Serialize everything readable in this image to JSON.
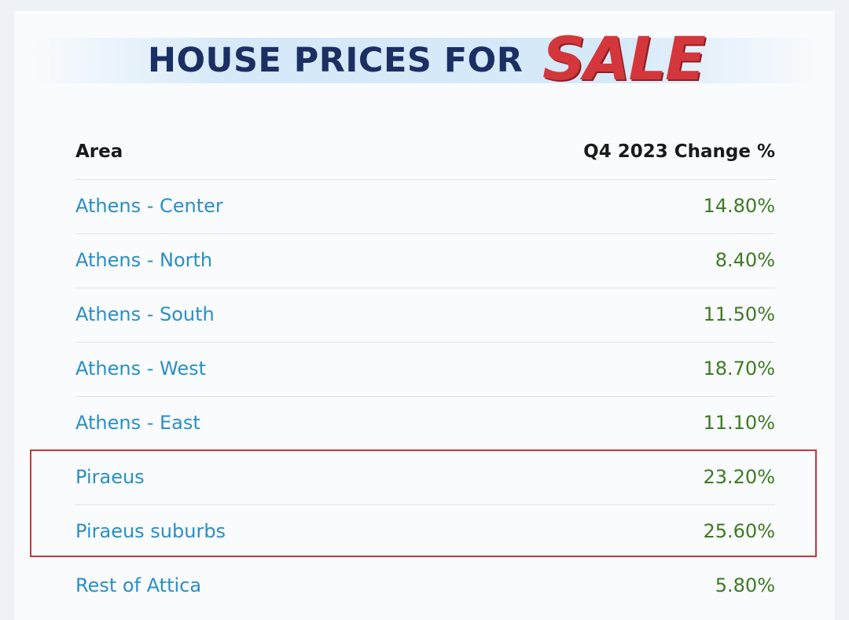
{
  "header": {
    "title": "HOUSE PRICES FOR",
    "highlight": "SALE"
  },
  "table": {
    "columns": [
      "Area",
      "Q4 2023  Change %"
    ],
    "rows": [
      [
        "Athens - Center",
        "14.80%"
      ],
      [
        "Athens - North",
        "8.40%"
      ],
      [
        "Athens - South",
        "11.50%"
      ],
      [
        "Athens - West",
        "18.70%"
      ],
      [
        "Athens - East",
        "11.10%"
      ],
      [
        "Piraeus",
        "23.20%"
      ],
      [
        "Piraeus suburbs",
        "25.60%"
      ],
      [
        "Rest of Attica",
        "5.80%"
      ]
    ]
  }
}
